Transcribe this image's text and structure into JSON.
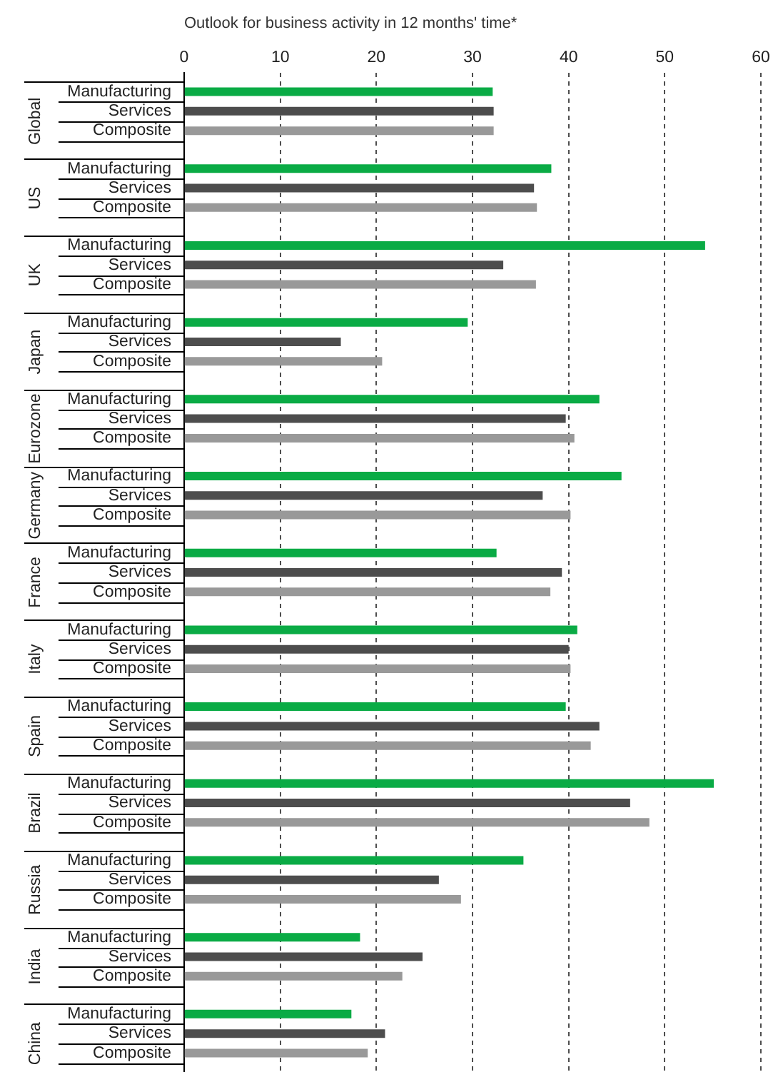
{
  "chart_data": {
    "type": "bar",
    "orientation": "horizontal",
    "title": "Outlook for business activity in 12 months' time*",
    "categories": [
      "Global",
      "US",
      "UK",
      "Japan",
      "Eurozone",
      "Germany",
      "France",
      "Italy",
      "Spain",
      "Brazil",
      "Russia",
      "India",
      "China"
    ],
    "series": [
      {
        "name": "Manufacturing",
        "color": "#0aab45",
        "values": [
          32.1,
          38.2,
          54.2,
          29.5,
          43.2,
          45.5,
          32.5,
          40.9,
          39.7,
          55.1,
          35.3,
          18.3,
          17.4
        ]
      },
      {
        "name": "Services",
        "color": "#4d4d4d",
        "values": [
          32.2,
          36.4,
          33.2,
          16.3,
          39.7,
          37.3,
          39.3,
          40.0,
          43.2,
          46.4,
          26.5,
          24.8,
          20.9
        ]
      },
      {
        "name": "Composite",
        "color": "#999999",
        "values": [
          32.2,
          36.7,
          36.6,
          20.6,
          40.6,
          40.2,
          38.1,
          40.2,
          42.3,
          48.4,
          28.8,
          22.7,
          19.1
        ]
      }
    ],
    "xlim": [
      0,
      60
    ],
    "xticks": [
      0,
      10,
      20,
      30,
      40,
      50,
      60
    ],
    "grid": "x",
    "legend": false
  }
}
